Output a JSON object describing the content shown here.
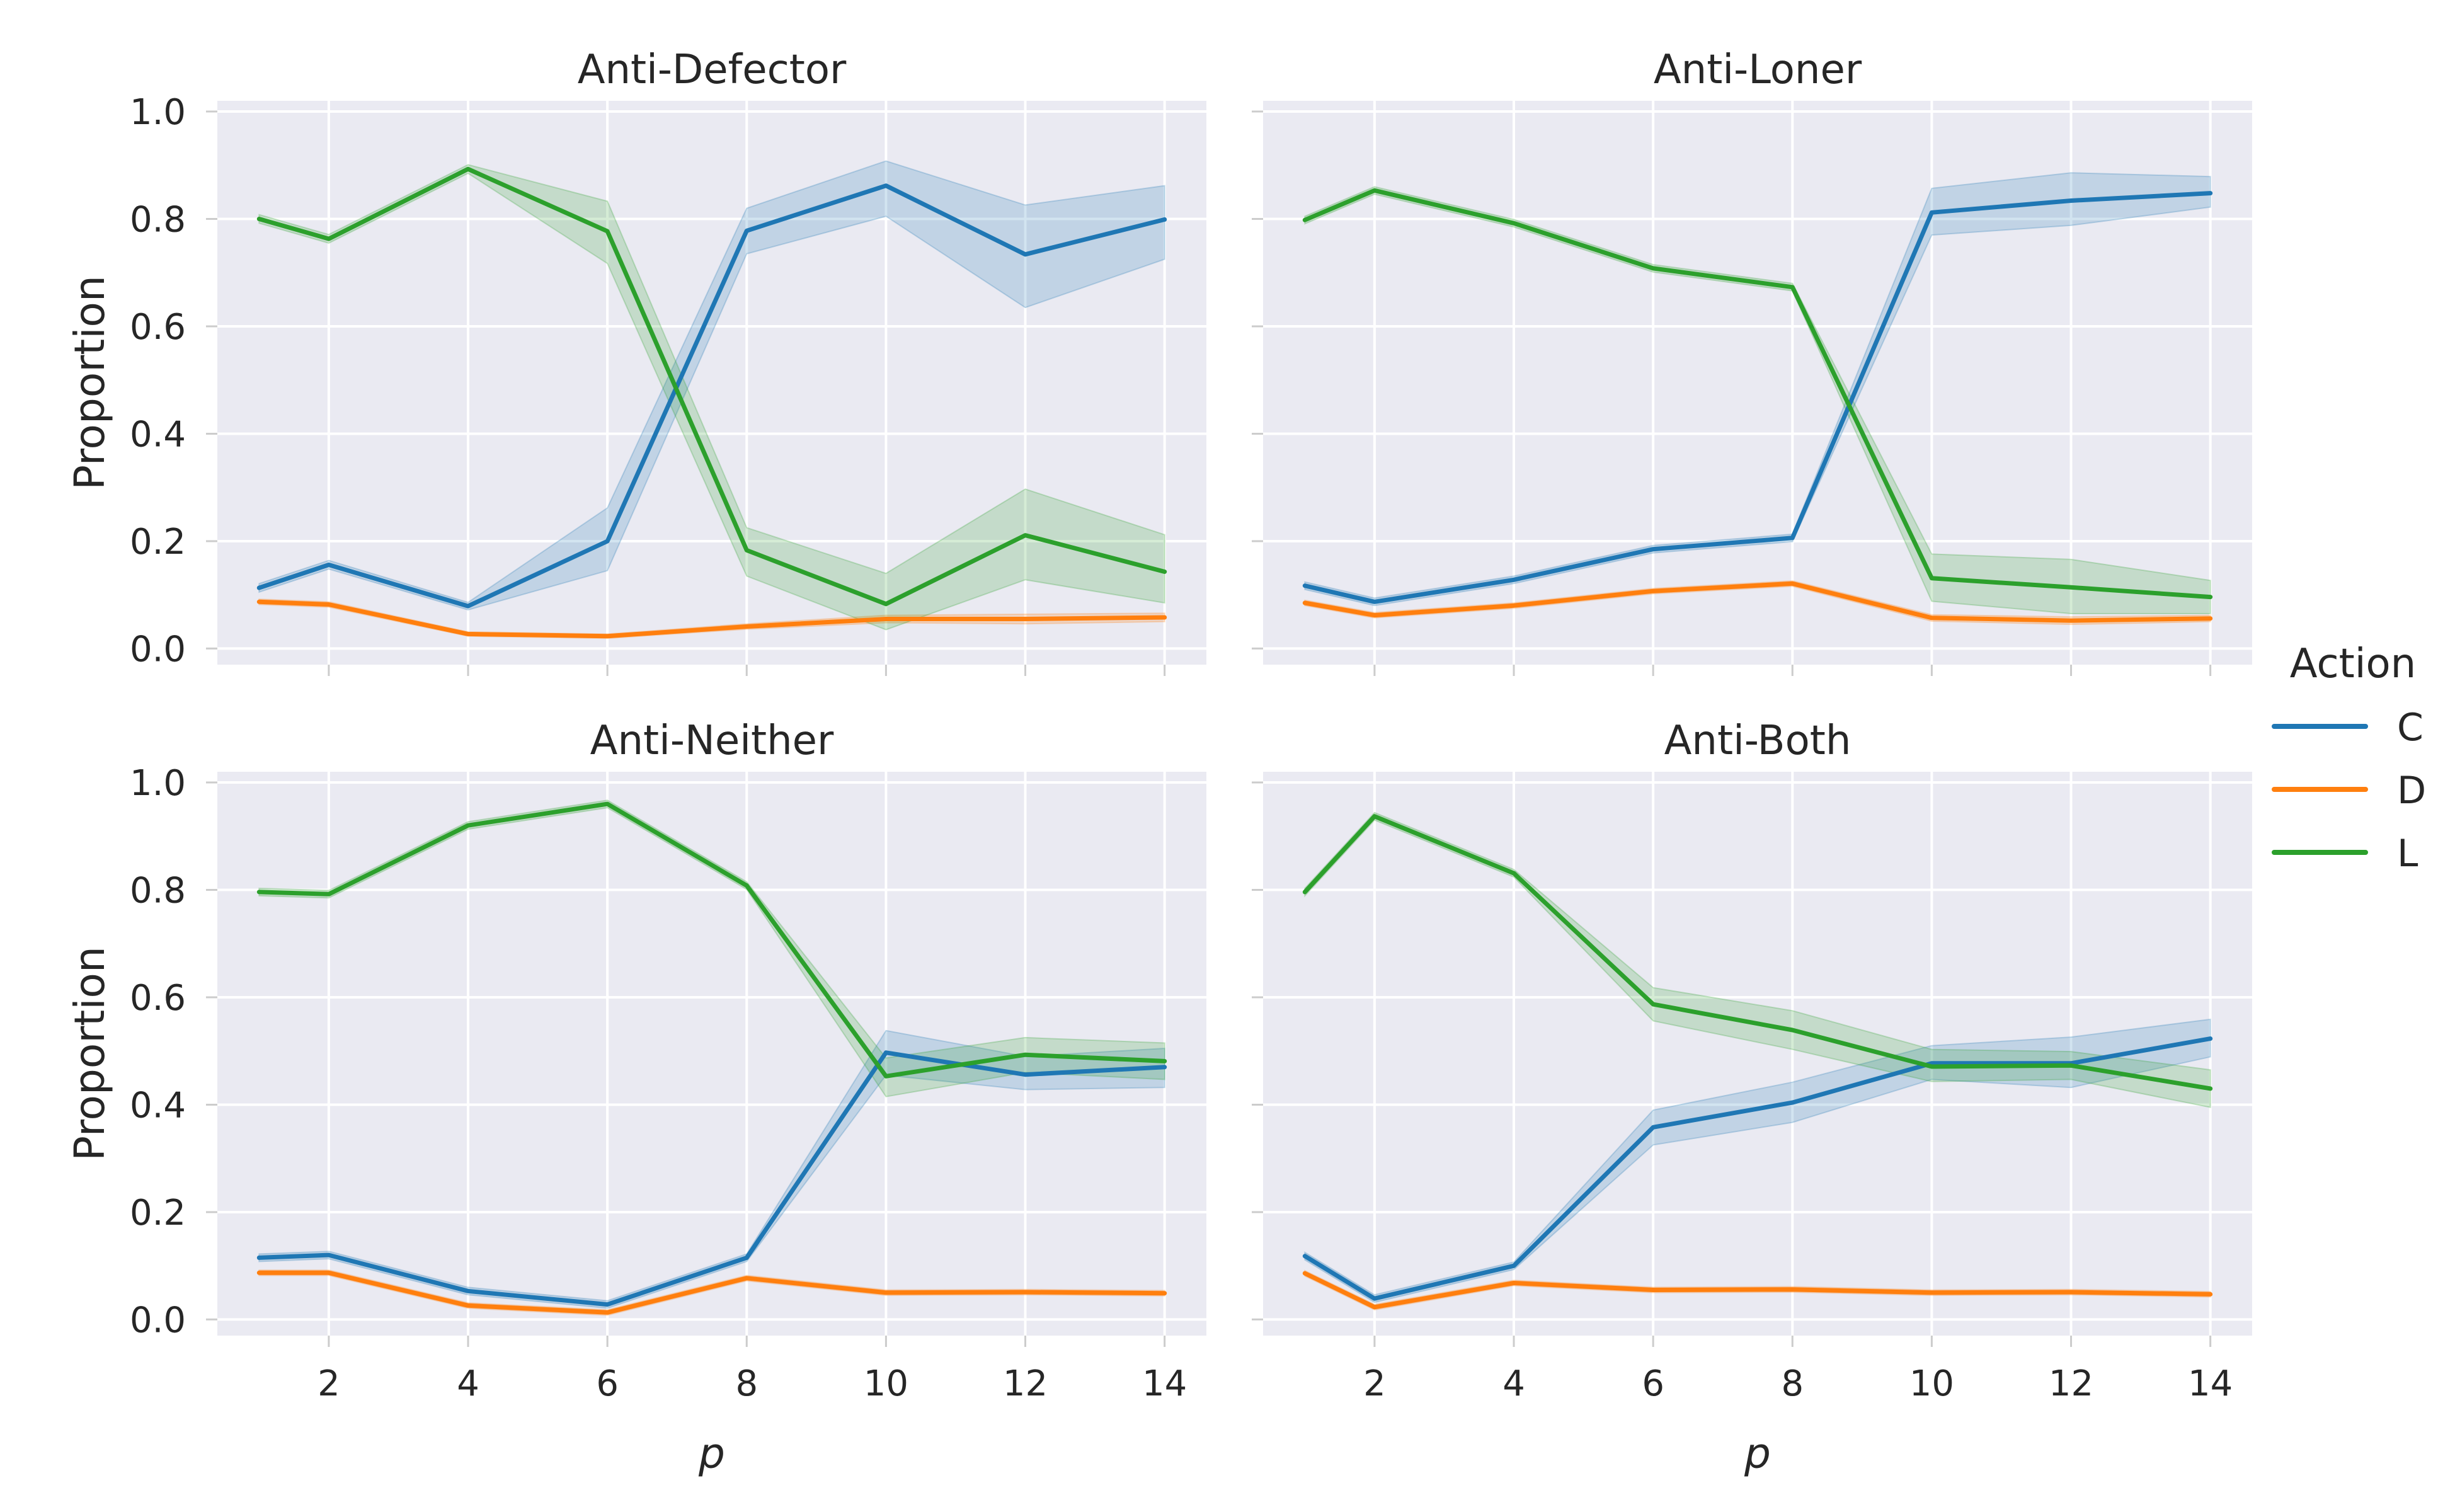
{
  "chart_data": {
    "type": "line",
    "colors": {
      "C": "#1f77b4",
      "D": "#ff7f0e",
      "L": "#2ca02c",
      "panel_bg": "#eaeaf2",
      "grid": "#ffffff"
    },
    "x": [
      1,
      2,
      4,
      6,
      8,
      10,
      12,
      14
    ],
    "xticks": [
      2,
      4,
      6,
      8,
      10,
      12,
      14
    ],
    "yticks": [
      0.0,
      0.2,
      0.4,
      0.6,
      0.8,
      1.0
    ],
    "ytick_labels": [
      "0.0",
      "0.2",
      "0.4",
      "0.6",
      "0.8",
      "1.0"
    ],
    "xlim": [
      0.4,
      14.6
    ],
    "ylim": [
      -0.03,
      1.02
    ],
    "xlabel": "p",
    "ylabel": "Proportion",
    "grid": true,
    "legend": {
      "title": "Action",
      "placement": "right",
      "entries": [
        "C",
        "D",
        "L"
      ]
    },
    "panels": [
      {
        "title": "Anti-Defector",
        "series": [
          {
            "name": "C",
            "values": [
              0.113,
              0.156,
              0.079,
              0.2,
              0.778,
              0.862,
              0.734,
              0.799
            ],
            "lower": [
              0.105,
              0.148,
              0.072,
              0.145,
              0.735,
              0.805,
              0.635,
              0.725
            ],
            "upper": [
              0.121,
              0.164,
              0.086,
              0.262,
              0.82,
              0.908,
              0.826,
              0.862
            ]
          },
          {
            "name": "D",
            "values": [
              0.087,
              0.082,
              0.027,
              0.023,
              0.041,
              0.055,
              0.055,
              0.058
            ],
            "lower": [
              0.082,
              0.077,
              0.023,
              0.019,
              0.036,
              0.048,
              0.046,
              0.05
            ],
            "upper": [
              0.092,
              0.087,
              0.031,
              0.027,
              0.046,
              0.062,
              0.064,
              0.066
            ]
          },
          {
            "name": "L",
            "values": [
              0.8,
              0.763,
              0.893,
              0.777,
              0.183,
              0.083,
              0.211,
              0.143
            ],
            "lower": [
              0.792,
              0.755,
              0.885,
              0.717,
              0.135,
              0.035,
              0.128,
              0.085
            ],
            "upper": [
              0.808,
              0.771,
              0.901,
              0.833,
              0.225,
              0.14,
              0.297,
              0.212
            ]
          }
        ]
      },
      {
        "title": "Anti-Loner",
        "series": [
          {
            "name": "C",
            "values": [
              0.117,
              0.087,
              0.128,
              0.185,
              0.206,
              0.812,
              0.834,
              0.848
            ],
            "lower": [
              0.11,
              0.08,
              0.121,
              0.178,
              0.199,
              0.77,
              0.788,
              0.822
            ],
            "upper": [
              0.124,
              0.094,
              0.135,
              0.192,
              0.213,
              0.857,
              0.886,
              0.879
            ]
          },
          {
            "name": "D",
            "values": [
              0.085,
              0.062,
              0.08,
              0.107,
              0.121,
              0.057,
              0.052,
              0.056
            ],
            "lower": [
              0.08,
              0.057,
              0.075,
              0.102,
              0.116,
              0.051,
              0.045,
              0.05
            ],
            "upper": [
              0.09,
              0.067,
              0.085,
              0.112,
              0.126,
              0.063,
              0.059,
              0.062
            ]
          },
          {
            "name": "L",
            "values": [
              0.798,
              0.853,
              0.792,
              0.708,
              0.673,
              0.131,
              0.114,
              0.096
            ],
            "lower": [
              0.791,
              0.846,
              0.785,
              0.701,
              0.666,
              0.088,
              0.065,
              0.065
            ],
            "upper": [
              0.805,
              0.86,
              0.799,
              0.715,
              0.68,
              0.176,
              0.166,
              0.127
            ]
          }
        ]
      },
      {
        "title": "Anti-Neither",
        "series": [
          {
            "name": "C",
            "values": [
              0.115,
              0.12,
              0.053,
              0.028,
              0.115,
              0.497,
              0.456,
              0.47
            ],
            "lower": [
              0.108,
              0.113,
              0.046,
              0.021,
              0.108,
              0.455,
              0.428,
              0.432
            ],
            "upper": [
              0.122,
              0.127,
              0.06,
              0.035,
              0.122,
              0.538,
              0.49,
              0.505
            ]
          },
          {
            "name": "D",
            "values": [
              0.087,
              0.087,
              0.026,
              0.013,
              0.077,
              0.05,
              0.051,
              0.049
            ],
            "lower": [
              0.082,
              0.082,
              0.021,
              0.008,
              0.072,
              0.045,
              0.046,
              0.044
            ],
            "upper": [
              0.092,
              0.092,
              0.031,
              0.018,
              0.082,
              0.055,
              0.056,
              0.054
            ]
          },
          {
            "name": "L",
            "values": [
              0.796,
              0.792,
              0.92,
              0.96,
              0.808,
              0.453,
              0.493,
              0.481
            ],
            "lower": [
              0.789,
              0.785,
              0.913,
              0.953,
              0.801,
              0.415,
              0.46,
              0.447
            ],
            "upper": [
              0.803,
              0.799,
              0.927,
              0.967,
              0.815,
              0.487,
              0.525,
              0.515
            ]
          }
        ]
      },
      {
        "title": "Anti-Both",
        "series": [
          {
            "name": "C",
            "values": [
              0.118,
              0.039,
              0.1,
              0.358,
              0.404,
              0.477,
              0.477,
              0.523
            ],
            "lower": [
              0.111,
              0.032,
              0.093,
              0.325,
              0.367,
              0.447,
              0.432,
              0.489
            ],
            "upper": [
              0.125,
              0.046,
              0.107,
              0.39,
              0.442,
              0.51,
              0.526,
              0.559
            ]
          },
          {
            "name": "D",
            "values": [
              0.086,
              0.023,
              0.068,
              0.055,
              0.056,
              0.05,
              0.051,
              0.047
            ],
            "lower": [
              0.081,
              0.018,
              0.063,
              0.05,
              0.051,
              0.045,
              0.046,
              0.042
            ],
            "upper": [
              0.091,
              0.028,
              0.073,
              0.06,
              0.061,
              0.055,
              0.056,
              0.052
            ]
          },
          {
            "name": "L",
            "values": [
              0.796,
              0.937,
              0.831,
              0.587,
              0.539,
              0.471,
              0.473,
              0.43
            ],
            "lower": [
              0.789,
              0.93,
              0.824,
              0.556,
              0.503,
              0.443,
              0.447,
              0.395
            ],
            "upper": [
              0.803,
              0.944,
              0.838,
              0.618,
              0.575,
              0.503,
              0.499,
              0.465
            ]
          }
        ]
      }
    ]
  }
}
